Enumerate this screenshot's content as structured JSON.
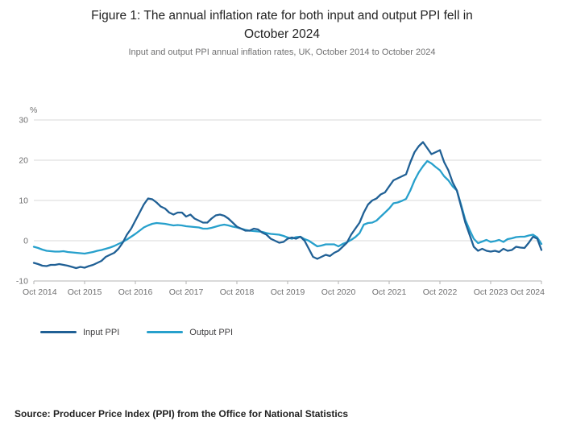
{
  "header": {
    "title_line1": "Figure 1: The annual inflation rate for both input and output PPI fell in",
    "title_line2": "October 2024",
    "subtitle": "Input and output PPI annual inflation rates, UK, October 2014 to October 2024"
  },
  "chart_data": {
    "type": "line",
    "title": "Figure 1: The annual inflation rate for both input and output PPI fell in October 2024",
    "subtitle": "Input and output PPI annual inflation rates, UK, October 2014 to October 2024",
    "y_unit": "%",
    "ylim": [
      -10,
      30
    ],
    "yticks": [
      30,
      20,
      10,
      0,
      -10
    ],
    "x_tick_labels": [
      "Oct 2014",
      "Oct 2015",
      "Oct 2016",
      "Oct 2017",
      "Oct 2018",
      "Oct 2019",
      "Oct 2020",
      "Oct 2021",
      "Oct 2022",
      "Oct 2023",
      "Oct 2024"
    ],
    "x_frequency": "monthly",
    "grid": true,
    "grid_color": "#d9d9d9",
    "axis_color": "#b3b3b3",
    "tick_label_color": "#707071",
    "legend_position": "bottom-left",
    "series": [
      {
        "name": "Input PPI",
        "color": "#206095",
        "values": [
          -5.5,
          -5.8,
          -6.2,
          -6.3,
          -6,
          -6,
          -5.8,
          -6,
          -6.2,
          -6.5,
          -6.8,
          -6.5,
          -6.7,
          -6.3,
          -6,
          -5.5,
          -5,
          -4,
          -3.5,
          -3,
          -2,
          -0.5,
          1.5,
          3,
          5,
          7,
          9,
          10.5,
          10.3,
          9.5,
          8.5,
          8,
          7,
          6.5,
          7,
          7,
          6,
          6.5,
          5.5,
          5,
          4.5,
          4.5,
          5.5,
          6.3,
          6.5,
          6.2,
          5.5,
          4.5,
          3.5,
          3,
          2.5,
          2.5,
          3,
          2.8,
          2,
          1.5,
          0.5,
          0,
          -0.5,
          -0.3,
          0.5,
          0.8,
          0.5,
          1,
          0,
          -2,
          -4,
          -4.5,
          -4,
          -3.5,
          -3.8,
          -3,
          -2.5,
          -1.5,
          -0.5,
          1.5,
          3,
          4.5,
          7,
          9,
          10,
          10.5,
          11.5,
          12,
          13.5,
          15,
          15.5,
          16,
          16.5,
          19.5,
          22,
          23.5,
          24.5,
          23,
          21.5,
          22,
          22.5,
          19.5,
          17.5,
          14.5,
          12.5,
          8.5,
          4.5,
          1.5,
          -1.5,
          -2.5,
          -2,
          -2.5,
          -2.7,
          -2.5,
          -2.8,
          -2,
          -2.5,
          -2.3,
          -1.5,
          -1.7,
          -1.8,
          -0.5,
          1,
          0.5,
          -2.3
        ]
      },
      {
        "name": "Output PPI",
        "color": "#27A0CC",
        "values": [
          -1.5,
          -1.8,
          -2.2,
          -2.5,
          -2.6,
          -2.7,
          -2.7,
          -2.6,
          -2.8,
          -2.9,
          -3,
          -3.1,
          -3.2,
          -3,
          -2.8,
          -2.5,
          -2.3,
          -2,
          -1.7,
          -1.3,
          -0.8,
          -0.3,
          0.3,
          1,
          1.7,
          2.5,
          3.3,
          3.8,
          4.2,
          4.4,
          4.3,
          4.2,
          4,
          3.8,
          3.9,
          3.8,
          3.6,
          3.5,
          3.4,
          3.3,
          3,
          3,
          3.2,
          3.5,
          3.8,
          4,
          3.8,
          3.5,
          3.3,
          3,
          2.7,
          2.5,
          2.4,
          2.3,
          2.2,
          1.9,
          1.7,
          1.6,
          1.5,
          1.2,
          0.8,
          0.5,
          0.9,
          1,
          0.4,
          0,
          -0.7,
          -1.4,
          -1.2,
          -0.9,
          -0.9,
          -0.9,
          -1.4,
          -0.8,
          -0.4,
          0.2,
          0.9,
          1.9,
          4,
          4.4,
          4.5,
          5,
          6,
          7,
          8,
          9.3,
          9.5,
          9.9,
          10.4,
          12.5,
          15,
          17,
          18.5,
          19.8,
          19.2,
          18.3,
          17.5,
          16,
          15,
          13.5,
          12.5,
          8.9,
          5.2,
          2.7,
          0.5,
          -0.6,
          -0.2,
          0.2,
          -0.3,
          -0.1,
          0.2,
          -0.3,
          0.4,
          0.6,
          0.9,
          1,
          1,
          1.3,
          1.5,
          0.8,
          -0.8
        ]
      }
    ]
  },
  "footer": {
    "source": "Source: Producer Price Index (PPI) from the Office for National Statistics"
  }
}
